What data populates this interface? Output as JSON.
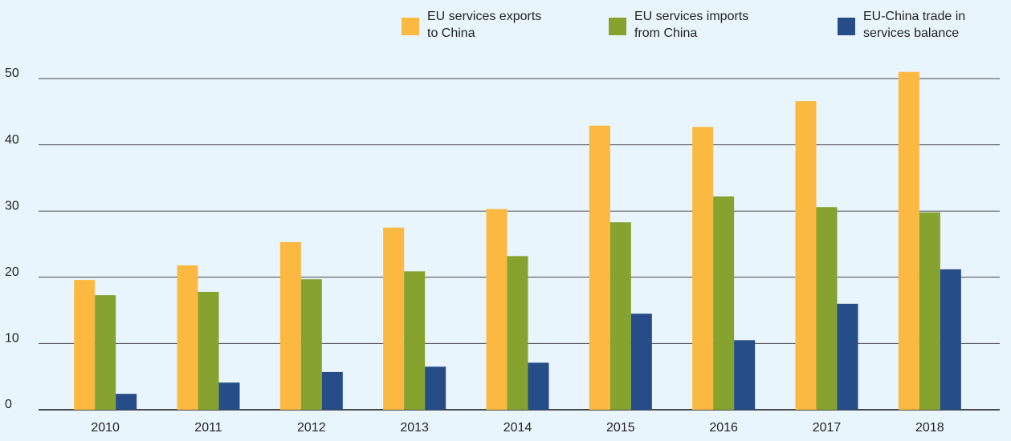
{
  "chart_data": {
    "type": "bar",
    "categories": [
      "2010",
      "2011",
      "2012",
      "2013",
      "2014",
      "2015",
      "2016",
      "2017",
      "2018"
    ],
    "series": [
      {
        "name": "EU services exports to China",
        "color": "#fbb942",
        "values": [
          19.6,
          21.8,
          25.3,
          27.5,
          30.3,
          42.9,
          42.7,
          46.6,
          51.0
        ]
      },
      {
        "name": "EU services imports from China",
        "color": "#86a22f",
        "values": [
          17.3,
          17.8,
          19.7,
          20.9,
          23.2,
          28.3,
          32.2,
          30.6,
          29.8
        ]
      },
      {
        "name": "EU-China trade in services balance",
        "color": "#264d88",
        "values": [
          2.4,
          4.1,
          5.7,
          6.5,
          7.1,
          14.5,
          10.5,
          16.0,
          21.2
        ]
      }
    ],
    "ylim": [
      0,
      52
    ],
    "yticks": [
      0,
      10,
      20,
      30,
      40,
      50
    ],
    "grid": true
  }
}
